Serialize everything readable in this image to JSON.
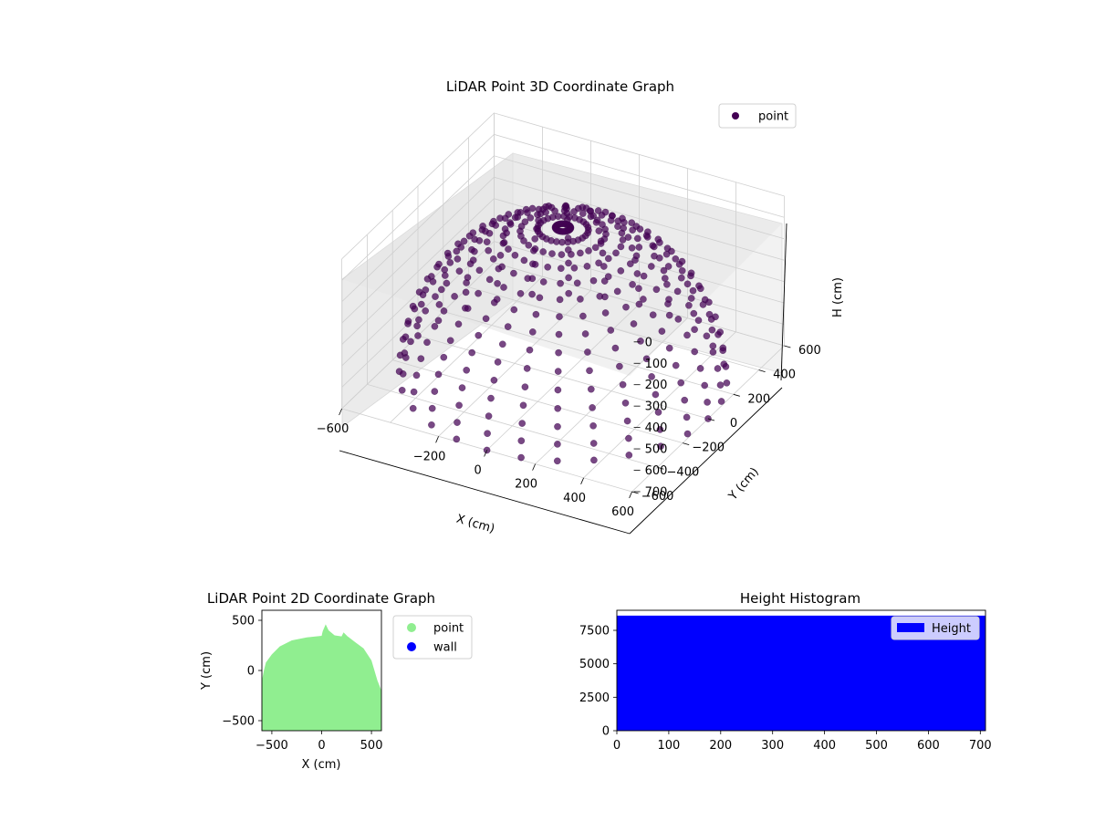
{
  "chart_data": [
    {
      "type": "scatter",
      "projection": "3d",
      "title": "LiDAR Point 3D Coordinate Graph",
      "xlabel": "X (cm)",
      "ylabel": "Y (cm)",
      "zlabel": "H (cm)",
      "xticks": [
        -600,
        -400,
        -200,
        0,
        200,
        400,
        600
      ],
      "xtick_labels": [
        "−600",
        "",
        "−200",
        "0",
        "200",
        "400",
        "600"
      ],
      "yticks": [
        -600,
        -400,
        -200,
        0,
        200,
        400,
        600
      ],
      "yticks_labels": [
        "−600",
        "−400",
        "−200",
        "0",
        "200",
        "400",
        "600"
      ],
      "zticks": [
        0,
        100,
        200,
        300,
        400,
        500,
        600,
        700
      ],
      "zticks_labels": [
        "0",
        "100",
        "200",
        "300",
        "400",
        "500",
        "600",
        "700"
      ],
      "xlim": [
        -600,
        600
      ],
      "ylim": [
        -600,
        600
      ],
      "zlim": [
        0,
        700
      ],
      "z_inverted": true,
      "series": [
        {
          "name": "point",
          "color": "#440154",
          "shape": "hemisphere",
          "radius": 600,
          "max_height": 700
        }
      ],
      "legend": {
        "entries": [
          "point"
        ],
        "placement": "top-right"
      },
      "grid": true
    },
    {
      "type": "scatter",
      "title": "LiDAR Point 2D Coordinate Graph",
      "xlabel": "X (cm)",
      "ylabel": "Y (cm)",
      "xlim": [
        -600,
        600
      ],
      "ylim": [
        -600,
        600
      ],
      "xticks": [
        -500,
        0,
        500
      ],
      "xtick_labels": [
        "−500",
        "0",
        "500"
      ],
      "yticks": [
        -500,
        0,
        500
      ],
      "ytick_labels": [
        "−500",
        "0",
        "500"
      ],
      "series": [
        {
          "name": "point",
          "color": "#90ee90"
        },
        {
          "name": "wall",
          "color": "#0000ff"
        }
      ],
      "outline": [
        [
          -600,
          -600
        ],
        [
          -600,
          -100
        ],
        [
          -580,
          0
        ],
        [
          -560,
          80
        ],
        [
          -500,
          160
        ],
        [
          -420,
          240
        ],
        [
          -300,
          300
        ],
        [
          -150,
          330
        ],
        [
          0,
          345
        ],
        [
          10,
          390
        ],
        [
          40,
          460
        ],
        [
          70,
          400
        ],
        [
          130,
          350
        ],
        [
          200,
          340
        ],
        [
          220,
          380
        ],
        [
          260,
          340
        ],
        [
          340,
          280
        ],
        [
          420,
          220
        ],
        [
          500,
          100
        ],
        [
          560,
          -100
        ],
        [
          600,
          -200
        ],
        [
          600,
          -600
        ]
      ],
      "legend": {
        "entries": [
          "point",
          "wall"
        ],
        "placement": "outside-right"
      },
      "grid": false
    },
    {
      "type": "bar",
      "title": "Height Histogram",
      "xlim": [
        0,
        710
      ],
      "ylim": [
        0,
        9000
      ],
      "xticks": [
        0,
        100,
        200,
        300,
        400,
        500,
        600,
        700
      ],
      "xtick_labels": [
        "0",
        "100",
        "200",
        "300",
        "400",
        "500",
        "600",
        "700"
      ],
      "yticks": [
        0,
        2500,
        5000,
        7500
      ],
      "ytick_labels": [
        "0",
        "2500",
        "5000",
        "7500"
      ],
      "series": [
        {
          "name": "Height",
          "color": "#0000ff",
          "bin_range": [
            0,
            710
          ],
          "value": 8600
        }
      ],
      "legend": {
        "entries": [
          "Height"
        ],
        "placement": "top-right"
      },
      "grid": false
    }
  ]
}
